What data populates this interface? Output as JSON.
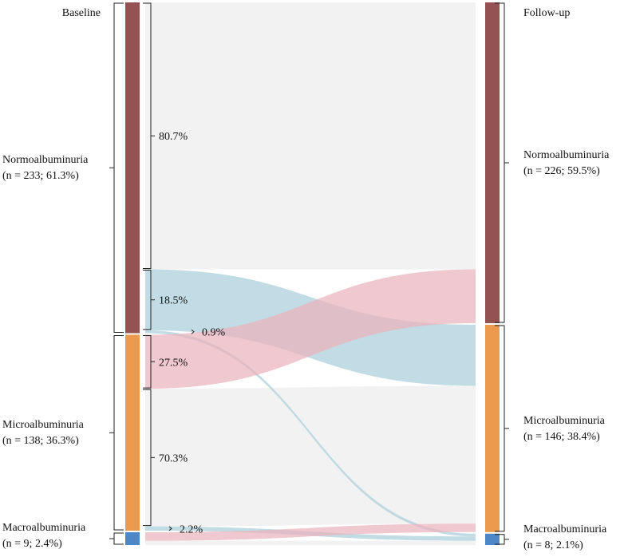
{
  "chart_data": {
    "type": "sankey",
    "stages": {
      "left": "Baseline",
      "right": "Follow-up"
    },
    "nodes": {
      "left": [
        {
          "key": "normo",
          "name": "Normoalbuminuria",
          "stat": "(n = 233; 61.3%)",
          "n": 233
        },
        {
          "key": "micro",
          "name": "Microalbuminuria",
          "stat": "(n = 138; 36.3%)",
          "n": 138
        },
        {
          "key": "macro",
          "name": "Macroalbuminuria",
          "stat": "(n = 9; 2.4%)",
          "n": 9
        }
      ],
      "right": [
        {
          "key": "normo",
          "name": "Normoalbuminuria",
          "stat": "(n = 226; 59.5%)",
          "n": 226
        },
        {
          "key": "micro",
          "name": "Microalbuminuria",
          "stat": "(n = 146; 38.4%)",
          "n": 146
        },
        {
          "key": "macro",
          "name": "Macroalbuminuria",
          "stat": "(n = 8; 2.1%)",
          "n": 8
        }
      ]
    },
    "flows": [
      {
        "from": "normo",
        "to": "normo",
        "value": 188,
        "pct": "80.7%"
      },
      {
        "from": "normo",
        "to": "micro",
        "value": 43,
        "pct": "18.5%"
      },
      {
        "from": "normo",
        "to": "macro",
        "value": 2,
        "pct": "0.9%"
      },
      {
        "from": "micro",
        "to": "normo",
        "value": 38,
        "pct": "27.5%"
      },
      {
        "from": "micro",
        "to": "micro",
        "value": 97,
        "pct": "70.3%"
      },
      {
        "from": "micro",
        "to": "macro",
        "value": 3,
        "pct": "2.2%"
      },
      {
        "from": "macro",
        "to": "micro",
        "value": 6,
        "pct": ""
      },
      {
        "from": "macro",
        "to": "macro",
        "value": 3,
        "pct": ""
      }
    ],
    "colors": {
      "normo": "#945352",
      "micro": "#ec9a4e",
      "macro": "#4d87c7",
      "flow_same": "#f2f2f2",
      "flow_up": "#eab3bd",
      "flow_down": "#a9cfda"
    }
  }
}
